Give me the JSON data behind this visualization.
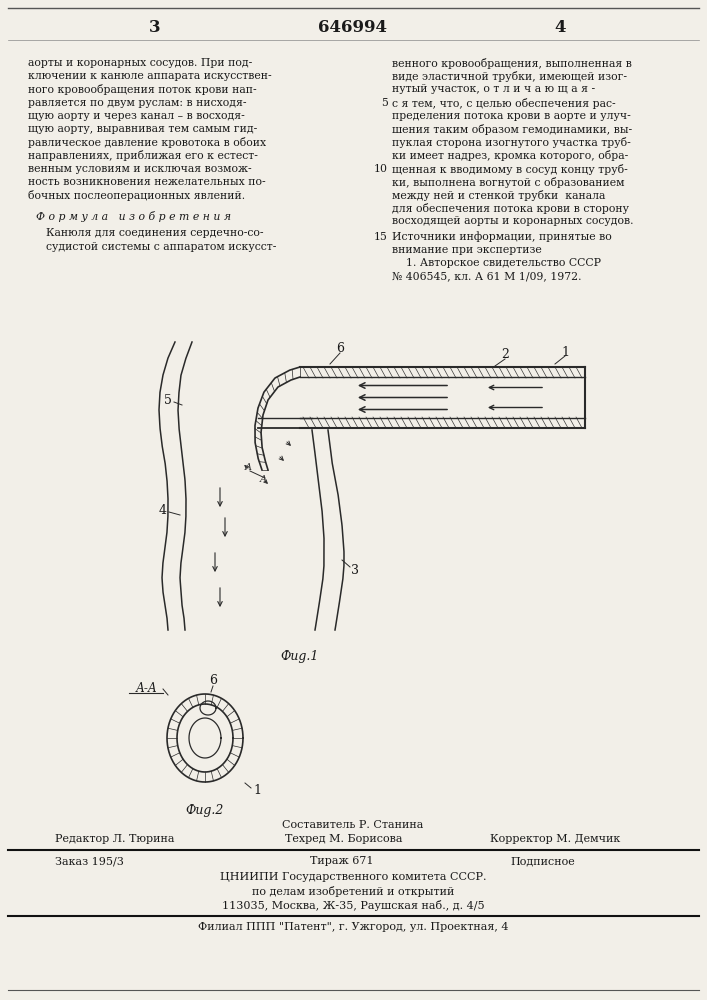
{
  "bg_color": "#f2efe8",
  "text_color": "#1a1a1a",
  "patent_number": "646994",
  "page_left": "3",
  "page_right": "4",
  "col_left_lines": [
    "аорты и коронарных сосудов. При под-",
    "ключении к канюле аппарата искусствен-",
    "ного кровообращения поток крови нап-",
    "равляется по двум руслам: в нисходя-",
    "щую аорту и через канал – в восходя-",
    "щую аорту, выравнивая тем самым гид-",
    "равлическое давление кровотока в обоих",
    "направлениях, приближая его к естест-",
    "венным условиям и исключая возмож-",
    "ность возникновения нежелательных по-",
    "бочных послеоперационных явлений."
  ],
  "formula_header": "Ф о р м у л а   и з о б р е т е н и я",
  "formula_lines": [
    "Канюля для соединения сердечно-со-",
    "судистой системы с аппаратом искусст-"
  ],
  "col_right_lines": [
    "венного кровообращения, выполненная в",
    "виде эластичной трубки, имеющей изог-",
    "нутый участок, о т л и ч а ю щ а я -",
    "с я тем, что, с целью обеспечения рас-",
    "пределения потока крови в аорте и улуч-",
    "шения таким образом гемодинамики, вы-",
    "пуклая сторона изогнутого участка труб-",
    "ки имеет надрез, кромка которого, обра-",
    "щенная к вводимому в сосуд концу труб-",
    "ки, выполнена вогнутой с образованием",
    "между ней и стенкой трубки  канала",
    "для обеспечения потока крови в сторону",
    "восходящей аорты и коронарных сосудов."
  ],
  "sources_header": "Источники информации, принятые во",
  "sources_line_num": "15",
  "sources_line": "внимание при экспертизе",
  "source_1": "    1. Авторское свидетельство СССР",
  "source_2": "№ 406545, кл. А 61 М 1/09, 1972.",
  "fig1_label": "Фиg.1",
  "fig2_label": "Фиg.2",
  "aa_label": "А-А",
  "footer_composer": "Составитель Р. Станина",
  "footer_editor": "Редактор Л. Тюрина",
  "footer_tech": "Техред М. Борисова",
  "footer_corrector": "Корректор М. Демчик",
  "footer_order": "Заказ 195/3",
  "footer_print": "Тираж 671",
  "footer_sign": "Подписное",
  "footer_org1": "ЦНИИПИ Государственного комитета СССР.",
  "footer_org2": "по делам изобретений и открытий",
  "footer_addr": "113035, Москва, Ж-35, Раушская наб., д. 4/5",
  "footer_branch": "Филиал ППП \"Патент\", г. Ужгород, ул. Проектная, 4"
}
